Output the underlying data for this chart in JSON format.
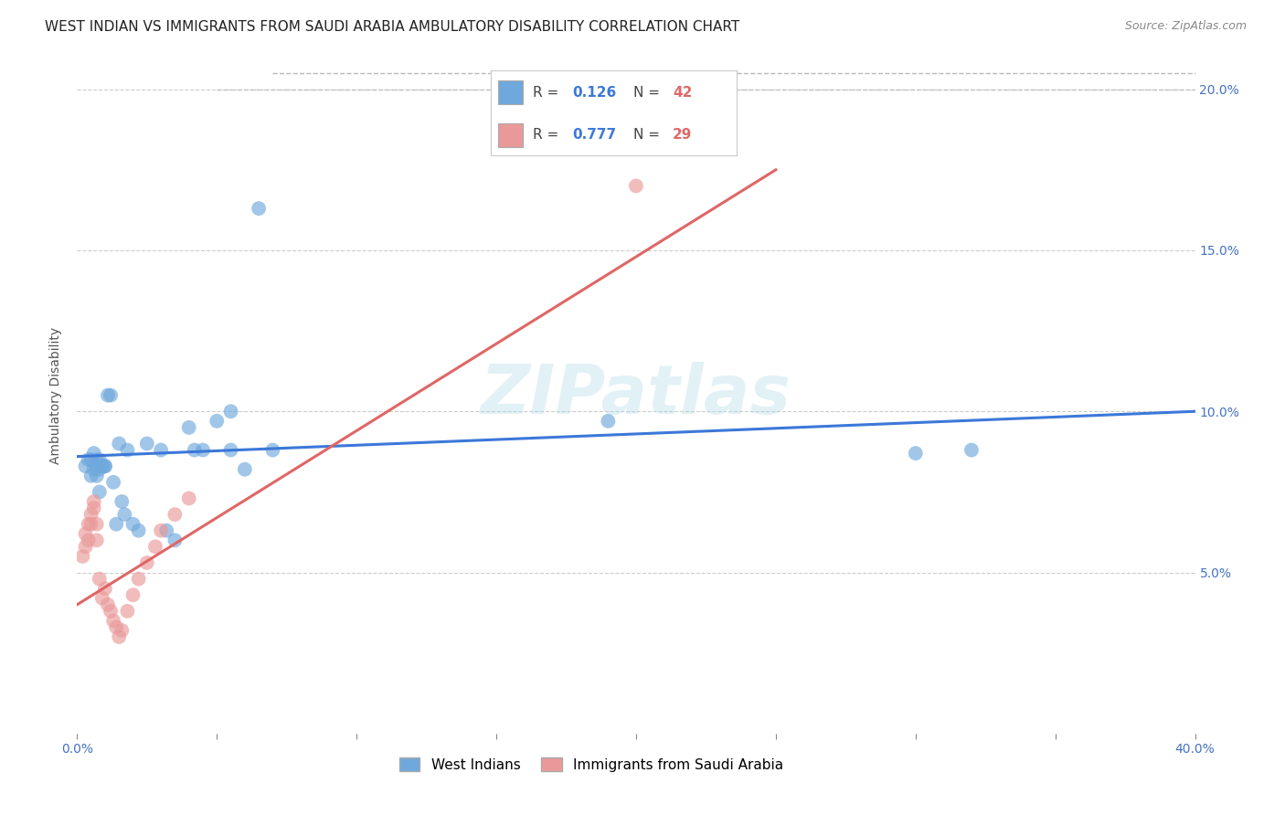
{
  "title": "WEST INDIAN VS IMMIGRANTS FROM SAUDI ARABIA AMBULATORY DISABILITY CORRELATION CHART",
  "source": "Source: ZipAtlas.com",
  "ylabel": "Ambulatory Disability",
  "xlim": [
    0.0,
    0.4
  ],
  "ylim": [
    0.0,
    0.21
  ],
  "series1_label": "West Indians",
  "series2_label": "Immigrants from Saudi Arabia",
  "blue_color": "#6FA8DC",
  "pink_color": "#EA9999",
  "blue_line_color": "#3C78D8",
  "pink_line_color": "#EA9999",
  "diag_color": "#BBBBBB",
  "watermark": "ZIPatlas",
  "tick_color": "#4472C4",
  "grid_color": "#CCCCCC",
  "title_fontsize": 11,
  "axis_label_fontsize": 10,
  "tick_fontsize": 10,
  "legend_fontsize": 11,
  "west_indian_x": [
    0.003,
    0.004,
    0.005,
    0.005,
    0.006,
    0.006,
    0.007,
    0.007,
    0.007,
    0.008,
    0.008,
    0.008,
    0.009,
    0.009,
    0.01,
    0.01,
    0.011,
    0.012,
    0.013,
    0.014,
    0.015,
    0.016,
    0.017,
    0.018,
    0.02,
    0.022,
    0.025,
    0.03,
    0.032,
    0.035,
    0.04,
    0.042,
    0.045,
    0.05,
    0.055,
    0.19,
    0.3,
    0.32,
    0.055,
    0.06,
    0.065,
    0.07
  ],
  "west_indian_y": [
    0.083,
    0.085,
    0.08,
    0.085,
    0.082,
    0.087,
    0.08,
    0.083,
    0.085,
    0.082,
    0.075,
    0.085,
    0.083,
    0.083,
    0.083,
    0.083,
    0.105,
    0.105,
    0.078,
    0.065,
    0.09,
    0.072,
    0.068,
    0.088,
    0.065,
    0.063,
    0.09,
    0.088,
    0.063,
    0.06,
    0.095,
    0.088,
    0.088,
    0.097,
    0.1,
    0.097,
    0.087,
    0.088,
    0.088,
    0.082,
    0.163,
    0.088
  ],
  "saudi_x": [
    0.002,
    0.003,
    0.003,
    0.004,
    0.004,
    0.005,
    0.005,
    0.006,
    0.006,
    0.007,
    0.007,
    0.008,
    0.009,
    0.01,
    0.011,
    0.012,
    0.013,
    0.014,
    0.015,
    0.016,
    0.018,
    0.02,
    0.022,
    0.025,
    0.028,
    0.03,
    0.035,
    0.04,
    0.2
  ],
  "saudi_y": [
    0.055,
    0.058,
    0.062,
    0.06,
    0.065,
    0.065,
    0.068,
    0.07,
    0.072,
    0.06,
    0.065,
    0.048,
    0.042,
    0.045,
    0.04,
    0.038,
    0.035,
    0.033,
    0.03,
    0.032,
    0.038,
    0.043,
    0.048,
    0.053,
    0.058,
    0.063,
    0.068,
    0.073,
    0.17
  ]
}
